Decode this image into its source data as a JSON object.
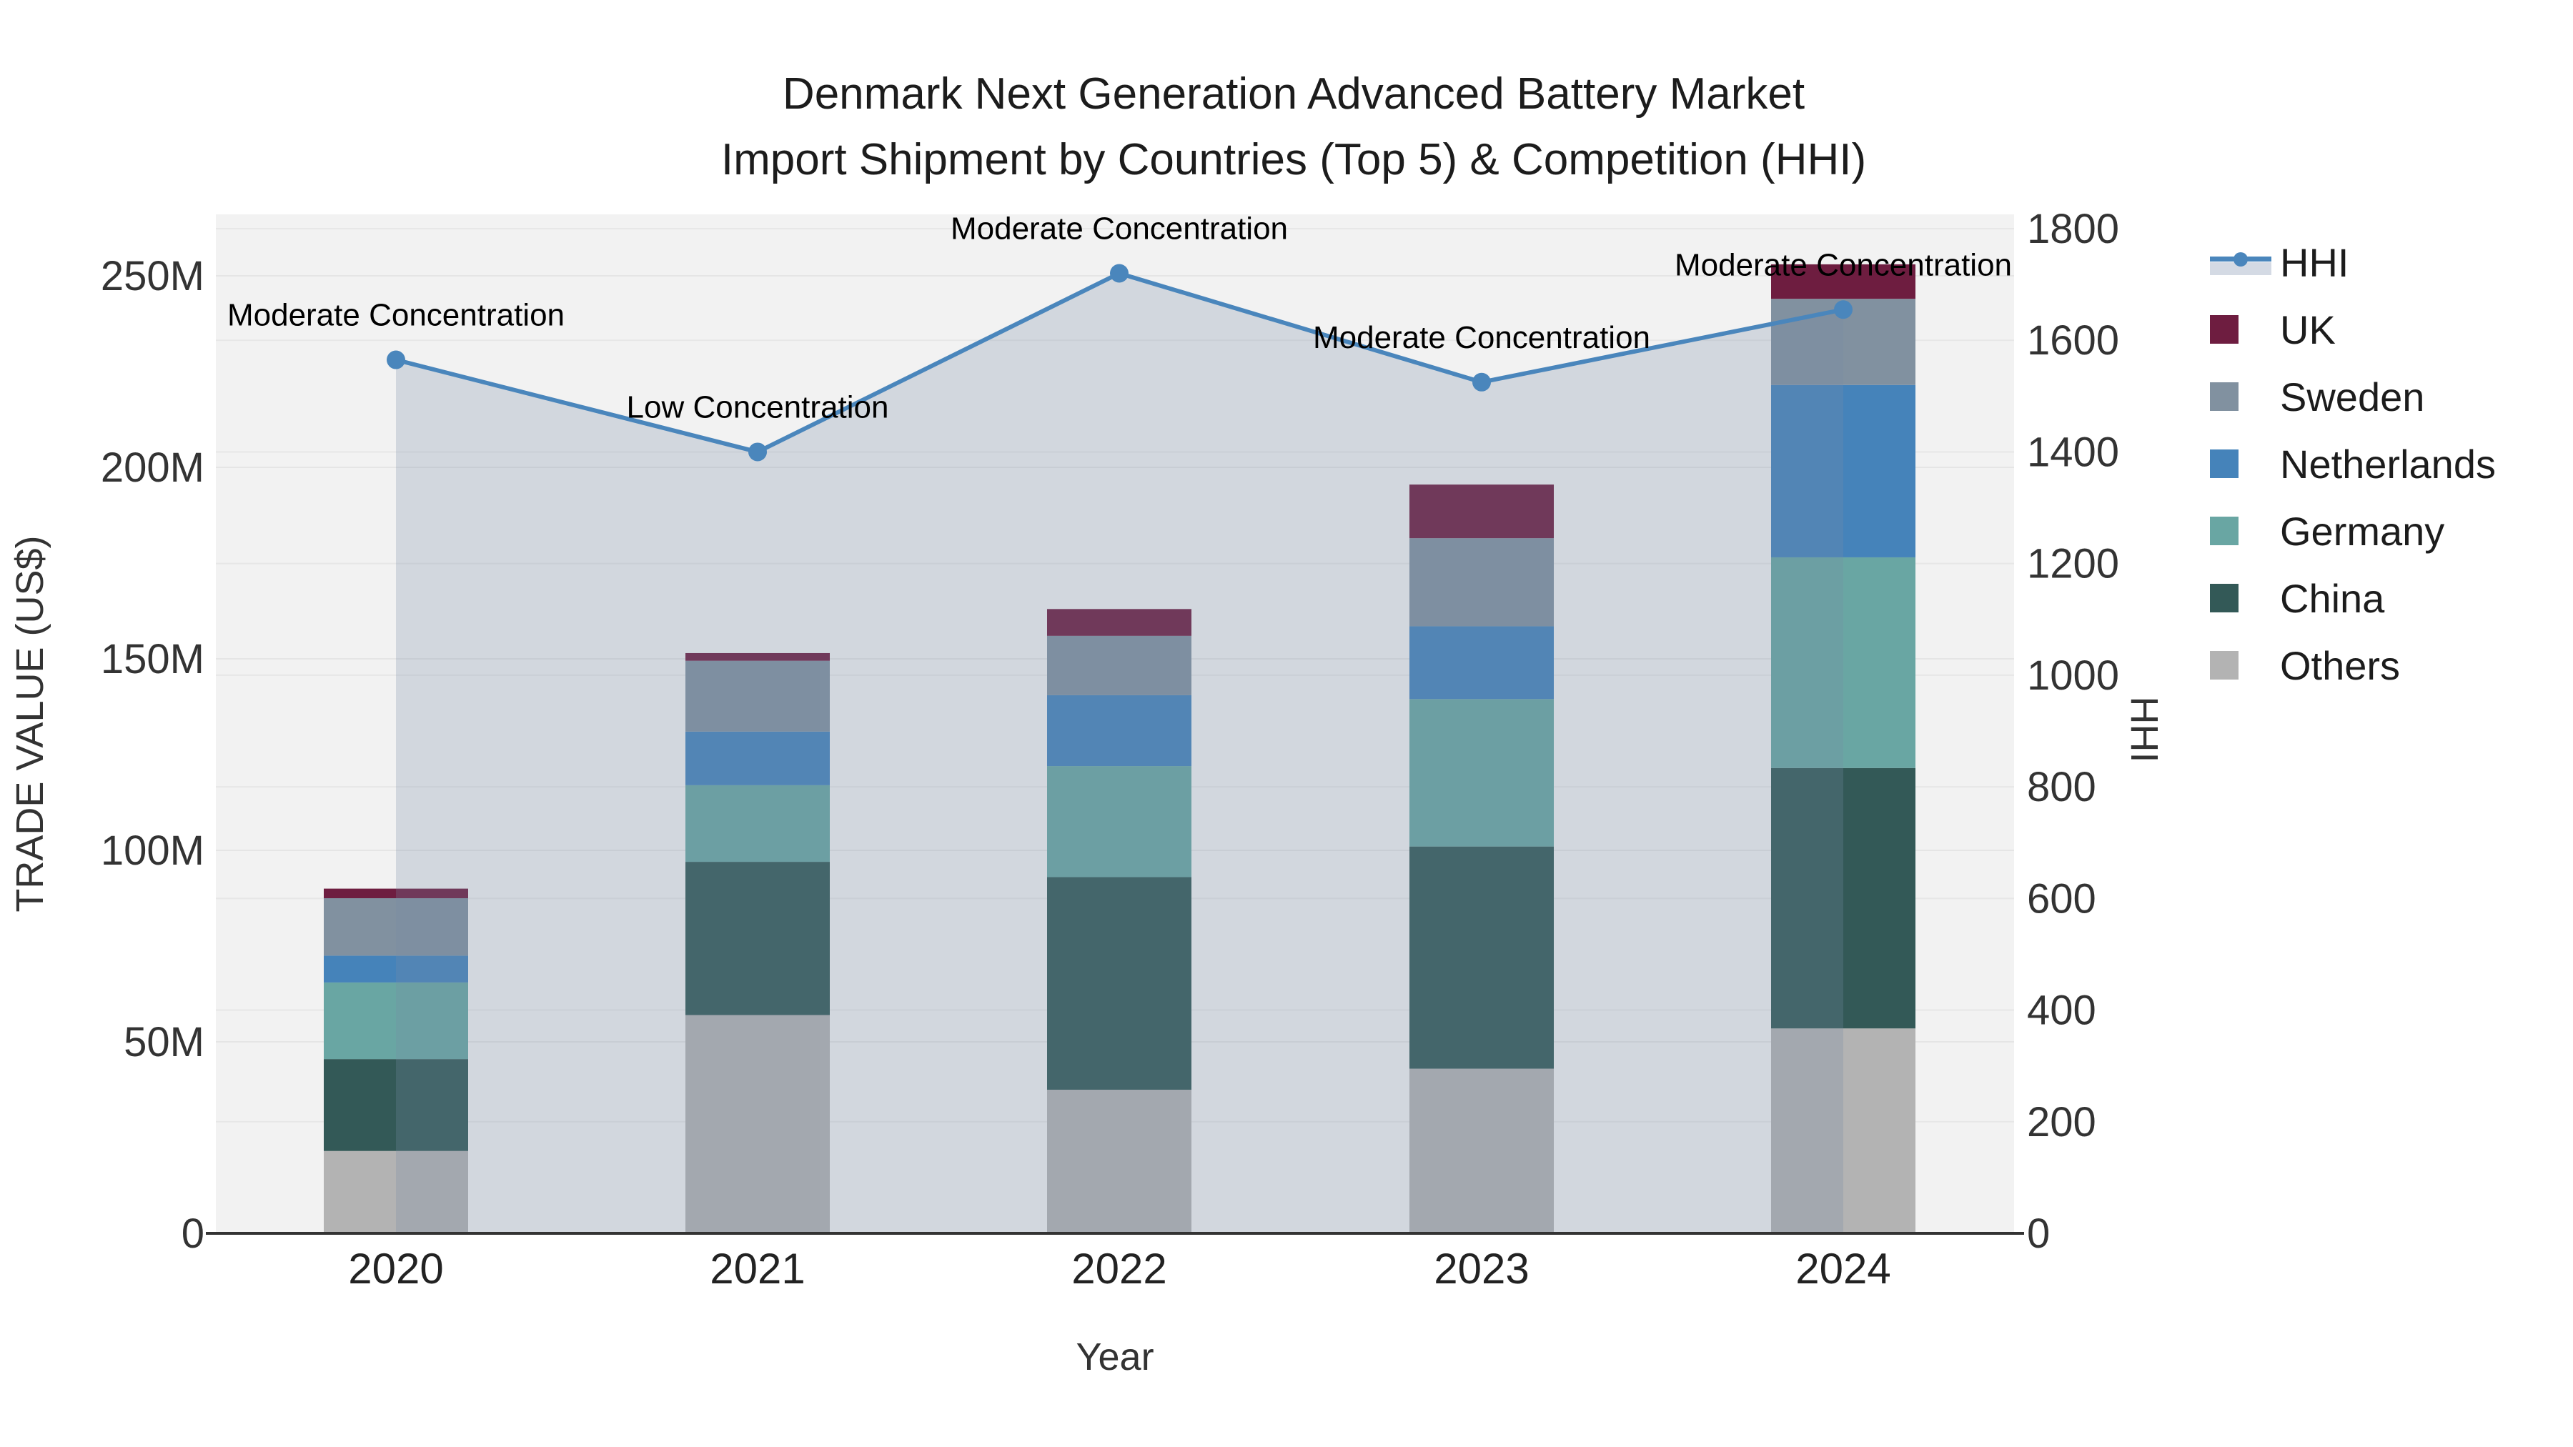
{
  "title": {
    "line1": "Denmark Next Generation Advanced Battery Market",
    "line2": "Import Shipment by Countries (Top 5) & Competition (HHI)"
  },
  "axes": {
    "y_left": {
      "title": "TRADE VALUE (US$)",
      "tick_values": [
        0,
        50,
        100,
        150,
        200,
        250
      ],
      "tick_labels": [
        "0",
        "50M",
        "100M",
        "150M",
        "200M",
        "250M"
      ]
    },
    "y_right": {
      "title": "HHI",
      "tick_values": [
        0,
        200,
        400,
        600,
        800,
        1000,
        1200,
        1400,
        1600,
        1800
      ],
      "tick_labels": [
        "0",
        "200",
        "400",
        "600",
        "800",
        "1000",
        "1200",
        "1400",
        "1600",
        "1800"
      ]
    },
    "x": {
      "title": "Year",
      "categories": [
        "2020",
        "2021",
        "2022",
        "2023",
        "2024"
      ]
    }
  },
  "chart_data": {
    "type": "bar",
    "subtype": "stacked-bars-with-line-overlay",
    "unit": "USD millions (trade value), HHI index points (line)",
    "categories": [
      "2020",
      "2021",
      "2022",
      "2023",
      "2024"
    ],
    "series": [
      {
        "name": "Others",
        "color": "#b3b3b3",
        "values": [
          21.5,
          57.0,
          37.5,
          43.0,
          53.5
        ]
      },
      {
        "name": "China",
        "color": "#335957",
        "values": [
          24.0,
          40.0,
          55.5,
          58.0,
          68.0
        ]
      },
      {
        "name": "Germany",
        "color": "#69a6a3",
        "values": [
          20.0,
          20.0,
          29.0,
          38.5,
          55.0
        ]
      },
      {
        "name": "Netherlands",
        "color": "#4583ba",
        "values": [
          7.0,
          14.0,
          18.5,
          19.0,
          45.0
        ]
      },
      {
        "name": "Sweden",
        "color": "#8191a0",
        "values": [
          15.0,
          18.5,
          15.5,
          23.0,
          22.5
        ]
      },
      {
        "name": "UK",
        "color": "#6e1d40",
        "values": [
          2.5,
          2.0,
          7.0,
          14.0,
          9.0
        ]
      }
    ],
    "line_series": {
      "name": "HHI",
      "color": "#4a86bc",
      "fill_color": "rgba(120,140,165,0.26)",
      "values": [
        1565,
        1400,
        1720,
        1525,
        1655
      ]
    },
    "annotations": [
      "Moderate Concentration",
      "Low Concentration",
      "Moderate Concentration",
      "Moderate Concentration",
      "Moderate Concentration"
    ],
    "ylim_left": [
      0,
      266
    ],
    "ylim_right": [
      0,
      1825
    ],
    "grid": true,
    "plot_bg": "#f2f2f2",
    "legend_position": "right"
  },
  "legend": [
    {
      "label": "HHI",
      "type": "line",
      "color": "#4a86bc"
    },
    {
      "label": "UK",
      "type": "square",
      "color": "#6e1d40"
    },
    {
      "label": "Sweden",
      "type": "square",
      "color": "#8191a0"
    },
    {
      "label": "Netherlands",
      "type": "square",
      "color": "#4583ba"
    },
    {
      "label": "Germany",
      "type": "square",
      "color": "#69a6a3"
    },
    {
      "label": "China",
      "type": "square",
      "color": "#335957"
    },
    {
      "label": "Others",
      "type": "square",
      "color": "#b3b3b3"
    }
  ]
}
